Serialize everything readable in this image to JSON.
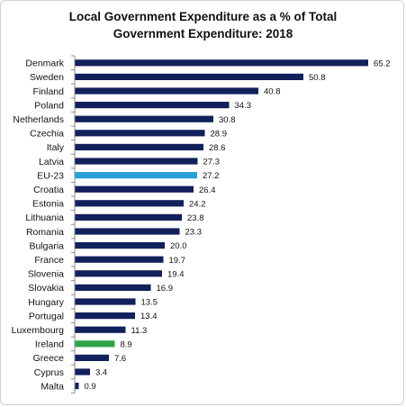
{
  "chart_data": {
    "type": "bar",
    "orientation": "horizontal",
    "title_lines": [
      "Local Government Expenditure as a % of Total",
      "Government Expenditure:  2018"
    ],
    "xlabel": "",
    "ylabel": "",
    "xlim": [
      0,
      66
    ],
    "grid": false,
    "legend": "none",
    "categories": [
      "Denmark",
      "Sweden",
      "Finland",
      "Poland",
      "Netherlands",
      "Czechia",
      "Italy",
      "Latvia",
      "EU-23",
      "Croatia",
      "Estonia",
      "Lithuania",
      "Romania",
      "Bulgaria",
      "France",
      "Slovenia",
      "Slovakia",
      "Hungary",
      "Portugal",
      "Luxembourg",
      "Ireland",
      "Greece",
      "Cyprus",
      "Malta"
    ],
    "values": [
      65.2,
      50.8,
      40.8,
      34.3,
      30.8,
      28.9,
      28.6,
      27.3,
      27.2,
      26.4,
      24.2,
      23.8,
      23.3,
      20.0,
      19.7,
      19.4,
      16.9,
      13.5,
      13.4,
      11.3,
      8.9,
      7.6,
      3.4,
      0.9
    ],
    "value_labels": [
      "65.2",
      "50.8",
      "40.8",
      "34.3",
      "30.8",
      "28.9",
      "28.6",
      "27.3",
      "27.2",
      "26.4",
      "24.2",
      "23.8",
      "23.3",
      "20.0",
      "19.7",
      "19.4",
      "16.9",
      "13.5",
      "13.4",
      "11.3",
      "8.9",
      "7.6",
      "3.4",
      "0.9"
    ],
    "colors": {
      "default": "#12205b",
      "highlight_eu": "#27a2d8",
      "highlight_ireland": "#2fa34a",
      "axis": "#8c8c8c",
      "text": "#111111"
    },
    "highlights": {
      "EU-23": "highlight_eu",
      "Ireland": "highlight_ireland"
    }
  }
}
